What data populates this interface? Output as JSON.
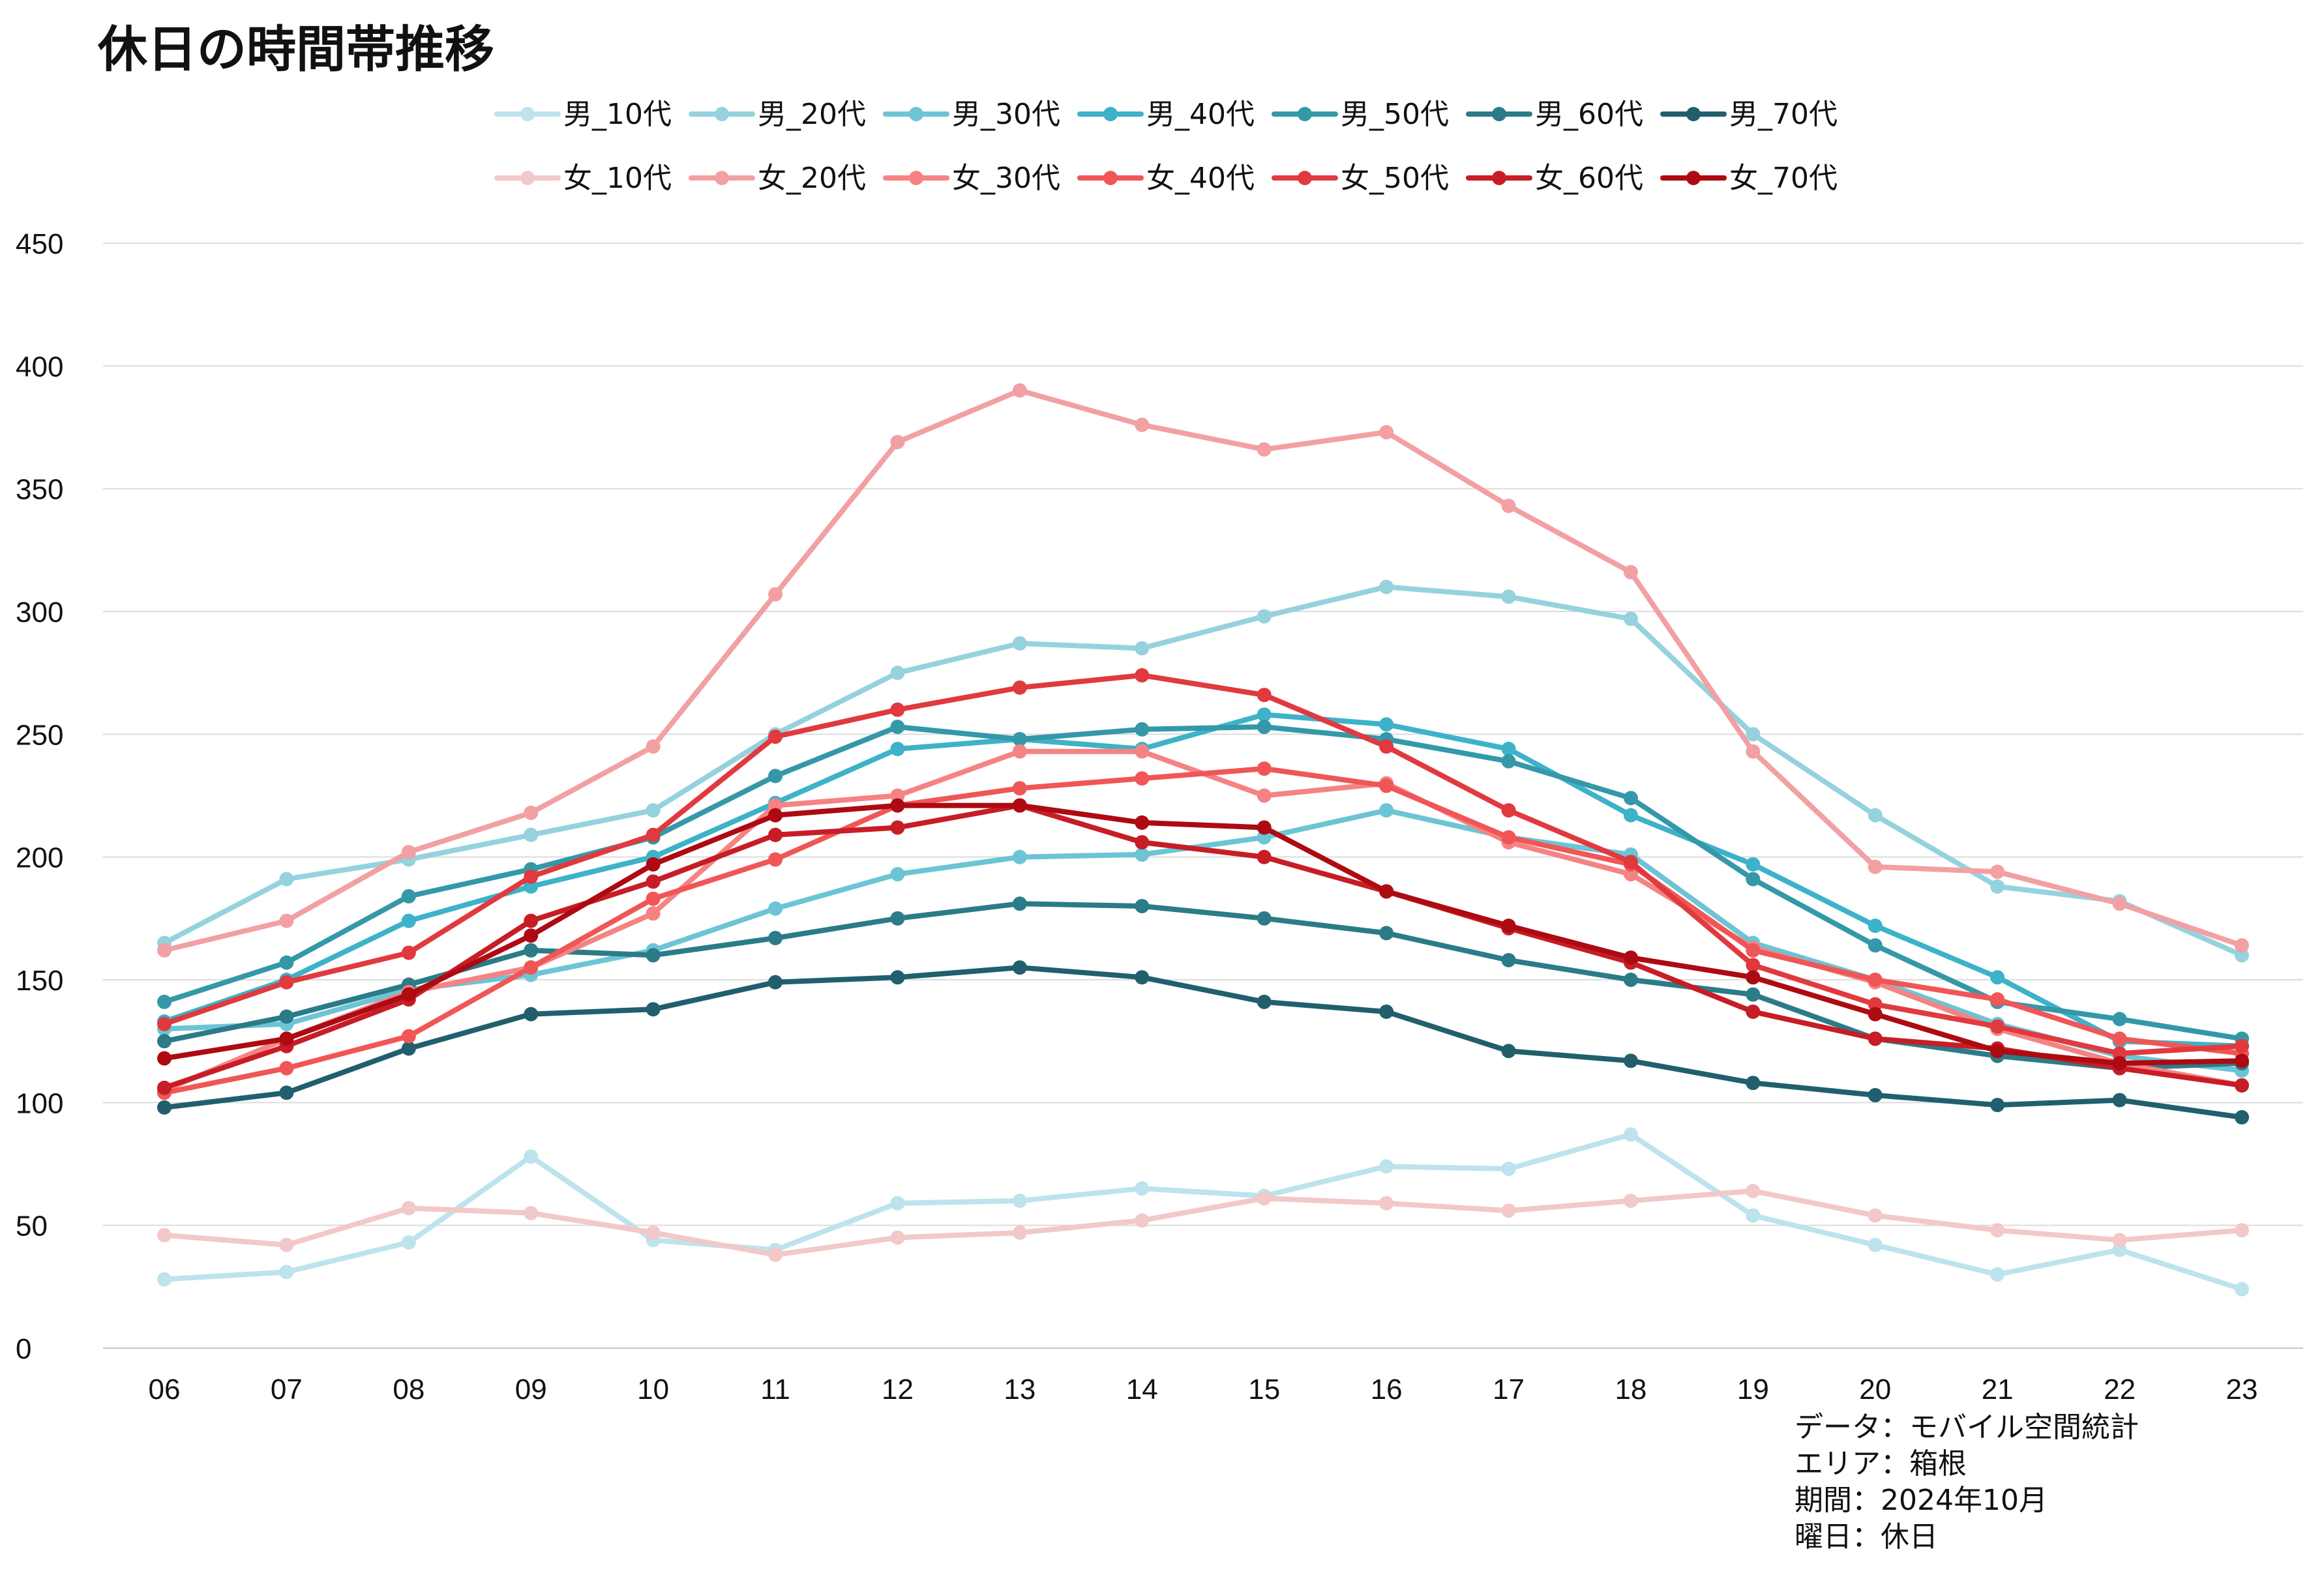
{
  "chart_data": {
    "type": "line",
    "title": "休日の時間帯推移",
    "xlabel": "",
    "ylabel": "",
    "ylim": [
      0,
      450
    ],
    "yticks": [
      0,
      50,
      100,
      150,
      200,
      250,
      300,
      350,
      400,
      450
    ],
    "grid": true,
    "legend_position": "top-center",
    "categories": [
      "06",
      "07",
      "08",
      "09",
      "10",
      "11",
      "12",
      "13",
      "14",
      "15",
      "16",
      "17",
      "18",
      "19",
      "20",
      "21",
      "22",
      "23"
    ],
    "series": [
      {
        "name": "男_10代",
        "color": "#bde3ec",
        "values": [
          28,
          31,
          43,
          78,
          44,
          40,
          59,
          60,
          65,
          62,
          74,
          73,
          87,
          54,
          42,
          30,
          40,
          24
        ]
      },
      {
        "name": "男_20代",
        "color": "#95d2de",
        "values": [
          165,
          191,
          199,
          209,
          219,
          250,
          275,
          287,
          285,
          298,
          310,
          306,
          297,
          250,
          217,
          188,
          182,
          160
        ]
      },
      {
        "name": "男_30代",
        "color": "#6cc4d5",
        "values": [
          130,
          132,
          146,
          152,
          162,
          179,
          193,
          200,
          201,
          208,
          219,
          208,
          201,
          165,
          150,
          132,
          119,
          113
        ]
      },
      {
        "name": "男_40代",
        "color": "#3db2c8",
        "values": [
          133,
          150,
          174,
          188,
          200,
          222,
          244,
          248,
          244,
          258,
          254,
          244,
          217,
          197,
          172,
          151,
          125,
          123
        ]
      },
      {
        "name": "男_50代",
        "color": "#3498a9",
        "values": [
          141,
          157,
          184,
          195,
          208,
          233,
          253,
          248,
          252,
          253,
          248,
          239,
          224,
          191,
          164,
          141,
          134,
          126
        ]
      },
      {
        "name": "男_60代",
        "color": "#2b7b88",
        "values": [
          125,
          135,
          148,
          162,
          160,
          167,
          175,
          181,
          180,
          175,
          169,
          158,
          150,
          144,
          126,
          119,
          114,
          116
        ]
      },
      {
        "name": "男_70代",
        "color": "#215f6d",
        "values": [
          98,
          104,
          122,
          136,
          138,
          149,
          151,
          155,
          151,
          141,
          137,
          121,
          117,
          108,
          103,
          99,
          101,
          94
        ]
      },
      {
        "name": "女_10代",
        "color": "#f3c8c8",
        "values": [
          46,
          42,
          57,
          55,
          47,
          38,
          45,
          47,
          52,
          61,
          59,
          56,
          60,
          64,
          54,
          48,
          44,
          48
        ]
      },
      {
        "name": "女_20代",
        "color": "#f2a0a3",
        "values": [
          162,
          174,
          202,
          218,
          245,
          307,
          369,
          390,
          376,
          366,
          373,
          343,
          316,
          243,
          196,
          194,
          181,
          164
        ]
      },
      {
        "name": "女_30代",
        "color": "#f58383",
        "values": [
          105,
          126,
          145,
          155,
          177,
          221,
          225,
          243,
          243,
          225,
          230,
          206,
          193,
          163,
          149,
          130,
          116,
          107
        ]
      },
      {
        "name": "女_40代",
        "color": "#f05656",
        "values": [
          104,
          114,
          127,
          155,
          183,
          199,
          221,
          228,
          232,
          236,
          229,
          208,
          197,
          162,
          150,
          142,
          126,
          120
        ]
      },
      {
        "name": "女_50代",
        "color": "#e03a3f",
        "values": [
          132,
          149,
          161,
          192,
          209,
          249,
          260,
          269,
          274,
          266,
          245,
          219,
          198,
          156,
          140,
          131,
          120,
          123
        ]
      },
      {
        "name": "女_60代",
        "color": "#c71d26",
        "values": [
          106,
          123,
          142,
          174,
          190,
          209,
          212,
          221,
          206,
          200,
          186,
          171,
          157,
          137,
          126,
          122,
          114,
          107
        ]
      },
      {
        "name": "女_70代",
        "color": "#ad0a12",
        "values": [
          118,
          126,
          144,
          168,
          197,
          217,
          221,
          221,
          214,
          212,
          186,
          172,
          159,
          151,
          136,
          121,
          116,
          117
        ]
      }
    ]
  },
  "source": {
    "data_label": "データ：モバイル空間統計",
    "area_label": "エリア：箱根",
    "period_label": "期間：2024年10月",
    "day_label": "曜日：休日"
  }
}
